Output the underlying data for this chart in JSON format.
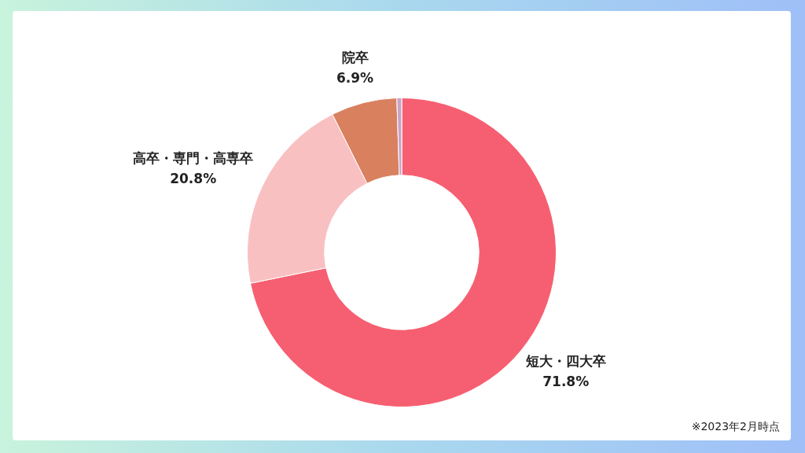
{
  "chart_data": {
    "type": "donut",
    "categories": [
      "短大・四大卒",
      "高卒・専門・高専卒",
      "院卒",
      null
    ],
    "values": [
      71.8,
      20.8,
      6.9,
      0.5
    ],
    "colors": [
      "#f65f71",
      "#f9c0c2",
      "#d9805f",
      "#c9a3c9"
    ],
    "value_labels": [
      "71.8%",
      "20.8%",
      "6.9%",
      null
    ],
    "legend": false,
    "annotations": [
      "※2023年2月時点"
    ]
  }
}
